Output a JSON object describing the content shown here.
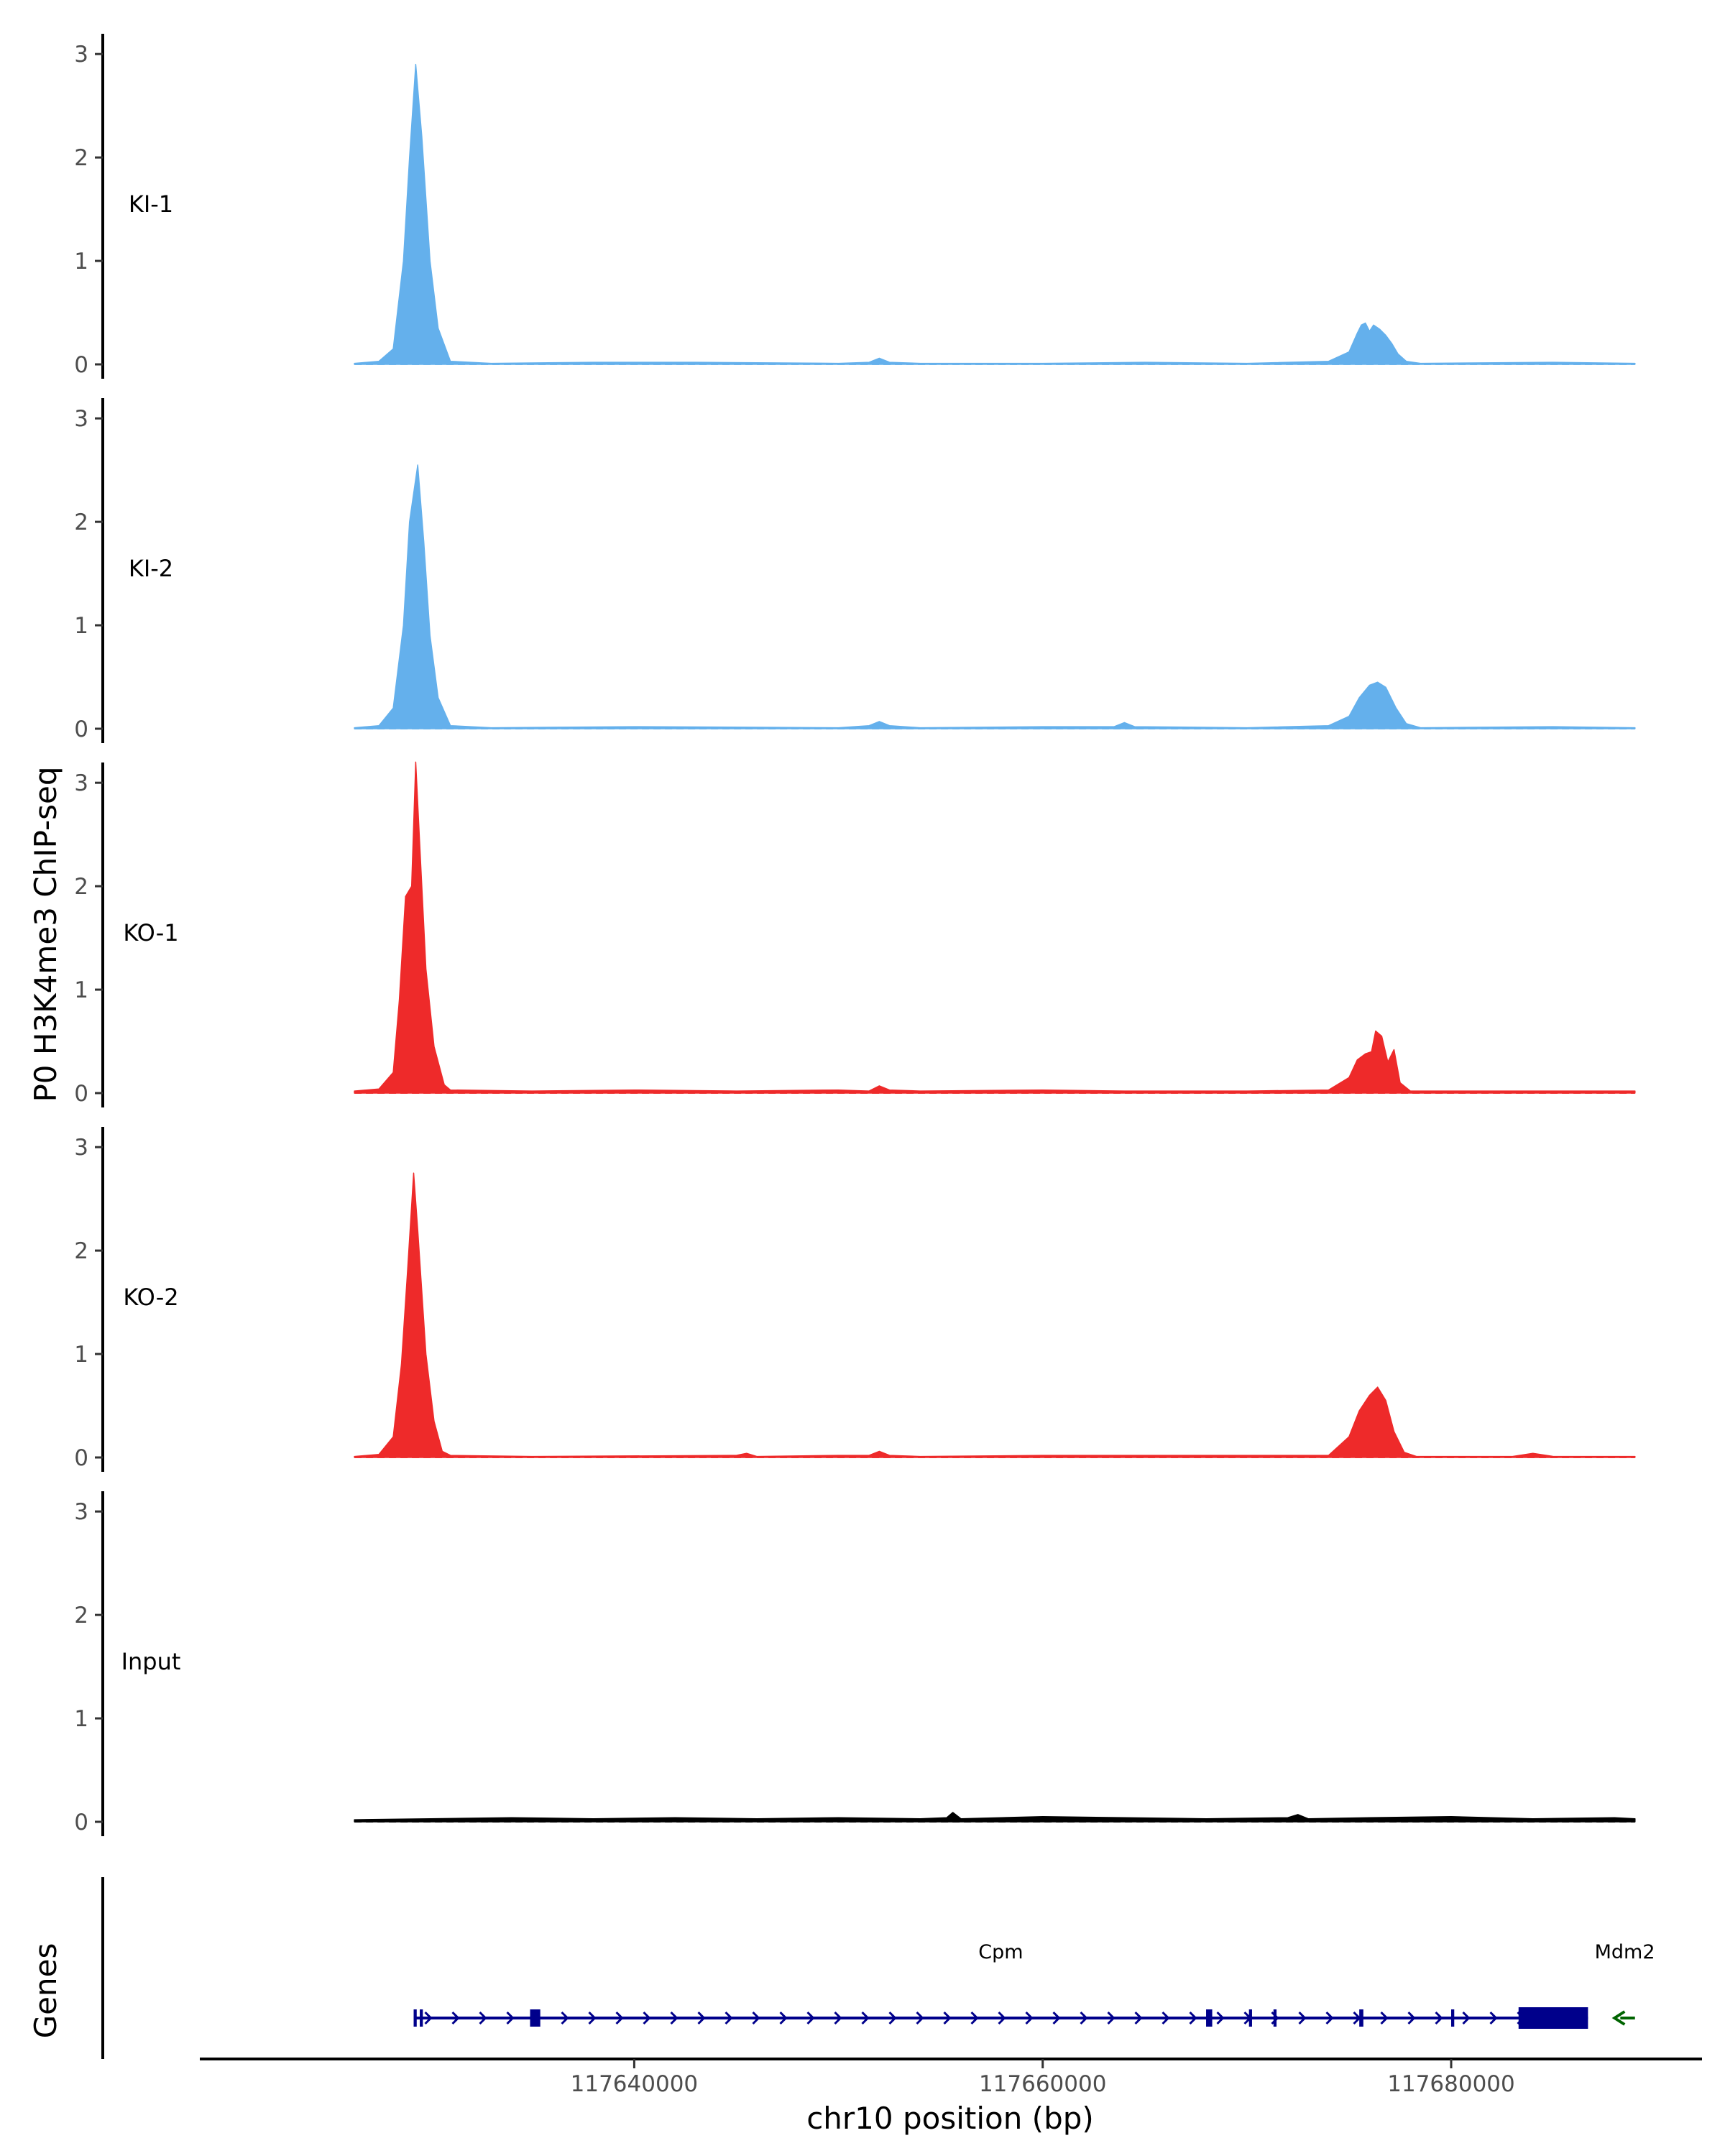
{
  "chart_data": {
    "type": "area",
    "ylabel": "P0 H3K4me3 ChIP-seq",
    "xlabel": "chr10 position (bp)",
    "xlim": [
      117618800,
      117692000
    ],
    "ylim": [
      0,
      3.3
    ],
    "yticks": [
      0,
      1,
      2,
      3
    ],
    "xticks": [
      117640000,
      117660000,
      117680000
    ],
    "xtick_labels": [
      "117640000",
      "117660000",
      "117680000"
    ],
    "colors": {
      "KI": "#64b0ec",
      "KO": "#ee2a2a",
      "Input": "#000000",
      "gene": "#00008b",
      "mdm2": "#006400"
    },
    "series": [
      {
        "name": "KI-1",
        "color": "#64b0ec",
        "x": [
          117626300,
          117627500,
          117628200,
          117628700,
          117629000,
          117629300,
          117629600,
          117630000,
          117630400,
          117631000,
          117633000,
          117638000,
          117643000,
          117650000,
          117651500,
          117652000,
          117652500,
          117654000,
          117660000,
          117665000,
          117670000,
          117674000,
          117675000,
          117675400,
          117675600,
          117675800,
          117676000,
          117676200,
          117676500,
          117676800,
          117677100,
          117677400,
          117677800,
          117678500,
          117685000,
          117689000
        ],
        "y": [
          0.01,
          0.03,
          0.15,
          1.0,
          2.0,
          2.9,
          2.2,
          1.0,
          0.35,
          0.03,
          0.01,
          0.02,
          0.02,
          0.01,
          0.02,
          0.06,
          0.02,
          0.01,
          0.01,
          0.02,
          0.01,
          0.03,
          0.12,
          0.3,
          0.38,
          0.4,
          0.32,
          0.38,
          0.34,
          0.28,
          0.2,
          0.1,
          0.03,
          0.01,
          0.02,
          0.01
        ]
      },
      {
        "name": "KI-2",
        "color": "#64b0ec",
        "x": [
          117626300,
          117627500,
          117628200,
          117628700,
          117629000,
          117629400,
          117629700,
          117630000,
          117630400,
          117631000,
          117633000,
          117640000,
          117650000,
          117651500,
          117652000,
          117652500,
          117654000,
          117660000,
          117663500,
          117664000,
          117664500,
          117670000,
          117674000,
          117675000,
          117675500,
          117676000,
          117676400,
          117676800,
          117677300,
          117677800,
          117678500,
          117685000,
          117689000
        ],
        "y": [
          0.01,
          0.03,
          0.2,
          1.0,
          2.0,
          2.55,
          1.8,
          0.9,
          0.3,
          0.03,
          0.01,
          0.02,
          0.01,
          0.03,
          0.07,
          0.03,
          0.01,
          0.02,
          0.02,
          0.06,
          0.02,
          0.01,
          0.03,
          0.12,
          0.3,
          0.42,
          0.45,
          0.4,
          0.2,
          0.05,
          0.01,
          0.02,
          0.01
        ]
      },
      {
        "name": "KO-1",
        "color": "#ee2a2a",
        "x": [
          117626300,
          117627500,
          117628200,
          117628500,
          117628800,
          117629100,
          117629300,
          117629500,
          117629800,
          117630200,
          117630700,
          117631000,
          117635000,
          117640000,
          117645000,
          117650000,
          117651500,
          117652000,
          117652500,
          117654000,
          117660000,
          117664000,
          117670000,
          117674000,
          117675000,
          117675400,
          117675800,
          117676100,
          117676300,
          117676600,
          117676900,
          117677200,
          117677500,
          117678000,
          117685000,
          117689000
        ],
        "y": [
          0.02,
          0.04,
          0.2,
          0.9,
          1.9,
          2.0,
          3.2,
          2.4,
          1.2,
          0.45,
          0.08,
          0.03,
          0.02,
          0.03,
          0.02,
          0.03,
          0.02,
          0.07,
          0.03,
          0.02,
          0.03,
          0.02,
          0.02,
          0.03,
          0.15,
          0.32,
          0.38,
          0.4,
          0.6,
          0.55,
          0.3,
          0.42,
          0.1,
          0.02,
          0.02,
          0.02
        ]
      },
      {
        "name": "KO-2",
        "color": "#ee2a2a",
        "x": [
          117626300,
          117627500,
          117628200,
          117628600,
          117628900,
          117629200,
          117629400,
          117629800,
          117630200,
          117630600,
          117631000,
          117635000,
          117645000,
          117645500,
          117646000,
          117650000,
          117651500,
          117652000,
          117652500,
          117654000,
          117660000,
          117670000,
          117674000,
          117675000,
          117675500,
          117676000,
          117676400,
          117676800,
          117677200,
          117677700,
          117678300,
          117683000,
          117684000,
          117685000,
          117689000
        ],
        "y": [
          0.01,
          0.03,
          0.2,
          0.9,
          1.8,
          2.75,
          2.2,
          1.0,
          0.35,
          0.06,
          0.02,
          0.01,
          0.02,
          0.04,
          0.01,
          0.02,
          0.02,
          0.06,
          0.02,
          0.01,
          0.02,
          0.02,
          0.02,
          0.2,
          0.45,
          0.6,
          0.68,
          0.55,
          0.25,
          0.05,
          0.01,
          0.01,
          0.04,
          0.01,
          0.01
        ]
      },
      {
        "name": "Input",
        "color": "#000000",
        "x": [
          117626300,
          117630000,
          117634000,
          117638000,
          117642000,
          117646000,
          117650000,
          117654000,
          117655300,
          117655600,
          117656000,
          117660000,
          117664000,
          117668000,
          117672000,
          117672500,
          117673000,
          117676000,
          117680000,
          117684000,
          117688000,
          117689000
        ],
        "y": [
          0.02,
          0.03,
          0.04,
          0.03,
          0.04,
          0.03,
          0.04,
          0.03,
          0.04,
          0.09,
          0.03,
          0.05,
          0.04,
          0.03,
          0.04,
          0.07,
          0.03,
          0.04,
          0.05,
          0.03,
          0.04,
          0.03
        ]
      }
    ],
    "genes": {
      "label": "Genes",
      "items": [
        {
          "name": "Cpm",
          "start": 117629200,
          "end": 117686700,
          "strand": "+",
          "exons": [
            [
              117629200,
              117629350
            ],
            [
              117629500,
              117629650
            ],
            [
              117634900,
              117635400
            ],
            [
              117668000,
              117668300
            ],
            [
              117670100,
              117670250
            ],
            [
              117671300,
              117671450
            ],
            [
              117675500,
              117675700
            ],
            [
              117680000,
              117680150
            ],
            [
              117683300,
              117686700
            ]
          ]
        },
        {
          "name": "Mdm2",
          "start": 117688000,
          "end": 117689000,
          "strand": "-",
          "exons": []
        }
      ]
    }
  }
}
